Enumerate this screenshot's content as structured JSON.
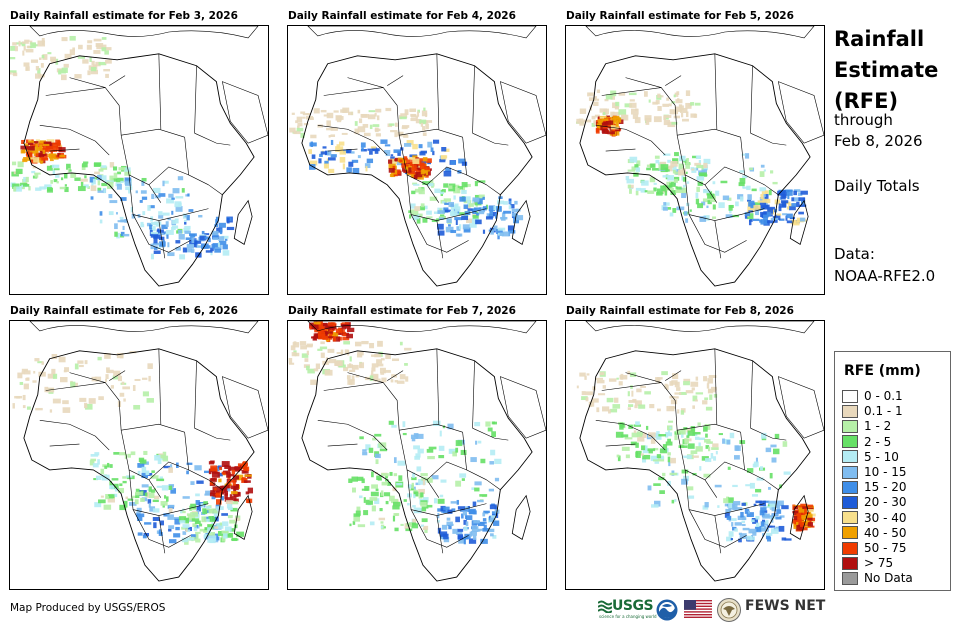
{
  "panels": [
    {
      "title": "Daily Rainfall estimate for Feb 3, 2026"
    },
    {
      "title": "Daily Rainfall estimate for Feb 4, 2026"
    },
    {
      "title": "Daily Rainfall estimate for Feb 5, 2026"
    },
    {
      "title": "Daily Rainfall estimate for Feb 6, 2026"
    },
    {
      "title": "Daily Rainfall estimate for Feb 7, 2026"
    },
    {
      "title": "Daily Rainfall estimate for Feb 8, 2026"
    }
  ],
  "side": {
    "title_line1": "Rainfall",
    "title_line2": "Estimate",
    "title_line3": "(RFE)",
    "through": "through",
    "through_date": "Feb 8, 2026",
    "daily_totals": "Daily Totals",
    "data_label": "Data:",
    "data_source": "NOAA-RFE2.0"
  },
  "legend": {
    "title": "RFE (mm)",
    "items": [
      {
        "label": "0 - 0.1",
        "color": "#ffffff"
      },
      {
        "label": "0.1 - 1",
        "color": "#e8d8bc"
      },
      {
        "label": "1 - 2",
        "color": "#b6f0a8"
      },
      {
        "label": "2 - 5",
        "color": "#66e066"
      },
      {
        "label": "5 - 10",
        "color": "#b4ecf4"
      },
      {
        "label": "10 - 15",
        "color": "#7fbcf0"
      },
      {
        "label": "15 - 20",
        "color": "#3f8ee8"
      },
      {
        "label": "20 - 30",
        "color": "#1f5cd8"
      },
      {
        "label": "30 - 40",
        "color": "#f8e08c"
      },
      {
        "label": "40 - 50",
        "color": "#f0a000"
      },
      {
        "label": "50 - 75",
        "color": "#f03c00"
      },
      {
        "label": "> 75",
        "color": "#b01010"
      },
      {
        "label": "No Data",
        "color": "#9a9a9a"
      }
    ]
  },
  "footer": {
    "credit": "Map Produced by USGS/EROS",
    "usgs": "USGS",
    "usgs_tagline": "science for a changing world",
    "fews": "FEWS NET"
  }
}
